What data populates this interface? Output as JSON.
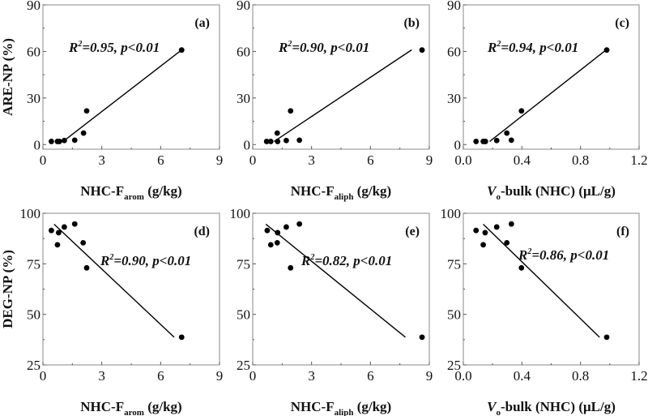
{
  "chart_data": [
    {
      "type": "scatter",
      "panel": "(a)",
      "xlabel": {
        "main": "NHC-F",
        "sub": "arom",
        "unit": " (g/kg)"
      },
      "ylabel": "ARE-NP (%)",
      "xlim": [
        0,
        9
      ],
      "ylim": [
        -3,
        90
      ],
      "xticks": [
        0,
        3,
        6,
        9
      ],
      "xtick_labels": [
        "0",
        "3",
        "6",
        "9"
      ],
      "yticks": [
        0,
        30,
        60,
        90
      ],
      "ytick_labels": [
        "0",
        "30",
        "60",
        "90"
      ],
      "stat": {
        "r2_prefix": "R",
        "r2_sup": "2",
        "text": "=0.95, p<0.01"
      },
      "points": {
        "x": [
          0.43,
          0.74,
          0.84,
          1.09,
          1.62,
          2.07,
          2.23,
          7.07
        ],
        "y": [
          2.0,
          2.0,
          2.0,
          2.6,
          2.8,
          7.4,
          21.7,
          60.9
        ]
      },
      "fit_line": {
        "x": [
          1.09,
          6.97
        ],
        "y": [
          2.6,
          60.0
        ]
      }
    },
    {
      "type": "scatter",
      "panel": "(b)",
      "xlabel": {
        "main": "NHC-F",
        "sub": "aliph",
        "unit": " (g/kg)"
      },
      "ylabel": "",
      "xlim": [
        0,
        9
      ],
      "ylim": [
        -3,
        90
      ],
      "xticks": [
        0,
        3,
        6,
        9
      ],
      "xtick_labels": [
        "0",
        "3",
        "6",
        "9"
      ],
      "yticks": [
        0,
        30,
        60,
        90
      ],
      "ytick_labels": [
        "0",
        "30",
        "60",
        "90"
      ],
      "stat": {
        "r2_prefix": "R",
        "r2_sup": "2",
        "text": "=0.90, p<0.01"
      },
      "points": {
        "x": [
          0.71,
          0.92,
          1.27,
          1.25,
          1.71,
          1.93,
          2.38,
          8.63
        ],
        "y": [
          2.0,
          2.0,
          2.0,
          7.4,
          2.6,
          21.7,
          2.8,
          60.9
        ]
      },
      "fit_line": {
        "x": [
          1.09,
          8.1
        ],
        "y": [
          2.0,
          61.0
        ]
      }
    },
    {
      "type": "scatter",
      "panel": "(c)",
      "xlabel": {
        "main": "V",
        "sub": "o",
        "unit": "-bulk (NHC) (μL/g)"
      },
      "ylabel": "",
      "xlim": [
        0,
        1.2
      ],
      "ylim": [
        -3,
        90
      ],
      "xticks": [
        0,
        0.4,
        0.8,
        1.2
      ],
      "xtick_labels": [
        "0.0",
        "0.4",
        "0.8",
        "1.2"
      ],
      "yticks": [
        0,
        30,
        60,
        90
      ],
      "ytick_labels": [
        "0",
        "30",
        "60",
        "90"
      ],
      "stat": {
        "r2_prefix": "R",
        "r2_sup": "2",
        "text": "=0.94, p<0.01"
      },
      "points": {
        "x": [
          0.087,
          0.136,
          0.151,
          0.228,
          0.297,
          0.328,
          0.397,
          0.979
        ],
        "y": [
          2.0,
          2.0,
          2.0,
          2.6,
          7.4,
          2.8,
          21.7,
          60.9
        ]
      },
      "fit_line": {
        "x": [
          0.18,
          0.966
        ],
        "y": [
          2.0,
          60.3
        ]
      }
    },
    {
      "type": "scatter",
      "panel": "(d)",
      "xlabel": {
        "main": "NHC-F",
        "sub": "arom",
        "unit": " (g/kg)"
      },
      "ylabel": "DEG-NP (%)",
      "xlim": [
        0,
        9
      ],
      "ylim": [
        25,
        100
      ],
      "xticks": [
        0,
        3,
        6,
        9
      ],
      "xtick_labels": [
        "0",
        "3",
        "6",
        "9"
      ],
      "yticks": [
        25,
        50,
        75,
        100
      ],
      "ytick_labels": [
        "25",
        "50",
        "75",
        "100"
      ],
      "stat": {
        "r2_prefix": "R",
        "r2_sup": "2",
        "text": "=0.90, p<0.01"
      },
      "points": {
        "x": [
          0.43,
          0.74,
          0.8,
          1.09,
          1.62,
          2.05,
          2.23,
          7.07
        ],
        "y": [
          91.5,
          84.4,
          90.4,
          93.2,
          94.7,
          85.4,
          73.0,
          38.7
        ]
      },
      "fit_line": {
        "x": [
          0.57,
          6.69
        ],
        "y": [
          94.6,
          38.7
        ]
      }
    },
    {
      "type": "scatter",
      "panel": "(e)",
      "xlabel": {
        "main": "NHC-F",
        "sub": "aliph",
        "unit": " (g/kg)"
      },
      "ylabel": "",
      "xlim": [
        0,
        9
      ],
      "ylim": [
        25,
        100
      ],
      "xticks": [
        0,
        3,
        6,
        9
      ],
      "xtick_labels": [
        "0",
        "3",
        "6",
        "9"
      ],
      "yticks": [
        25,
        50,
        75,
        100
      ],
      "ytick_labels": [
        "25",
        "50",
        "75",
        "100"
      ],
      "stat": {
        "r2_prefix": "R",
        "r2_sup": "2",
        "text": "=0.82, p<0.01"
      },
      "points": {
        "x": [
          0.74,
          0.92,
          1.25,
          1.27,
          1.71,
          1.93,
          2.38,
          8.63
        ],
        "y": [
          91.5,
          84.4,
          85.4,
          90.4,
          93.2,
          73.0,
          94.7,
          38.7
        ]
      },
      "fit_line": {
        "x": [
          0.67,
          7.78
        ],
        "y": [
          94.6,
          38.7
        ]
      }
    },
    {
      "type": "scatter",
      "panel": "(f)",
      "xlabel": {
        "main": "V",
        "sub": "o",
        "unit": "-bulk (NHC) (μL/g)"
      },
      "ylabel": "",
      "xlim": [
        0,
        1.2
      ],
      "ylim": [
        25,
        100
      ],
      "xticks": [
        0,
        0.4,
        0.8,
        1.2
      ],
      "xtick_labels": [
        "0.0",
        "0.4",
        "0.8",
        "1.2"
      ],
      "yticks": [
        25,
        50,
        75,
        100
      ],
      "ytick_labels": [
        "25",
        "50",
        "75",
        "100"
      ],
      "stat": {
        "r2_prefix": "R",
        "r2_sup": "2",
        "text": "=0.86, p<0.01"
      },
      "points": {
        "x": [
          0.087,
          0.136,
          0.149,
          0.228,
          0.297,
          0.328,
          0.397,
          0.979
        ],
        "y": [
          91.5,
          84.4,
          90.4,
          93.2,
          85.4,
          94.7,
          73.0,
          38.7
        ]
      },
      "fit_line": {
        "x": [
          0.136,
          0.93
        ],
        "y": [
          94.6,
          38.7
        ]
      }
    }
  ]
}
